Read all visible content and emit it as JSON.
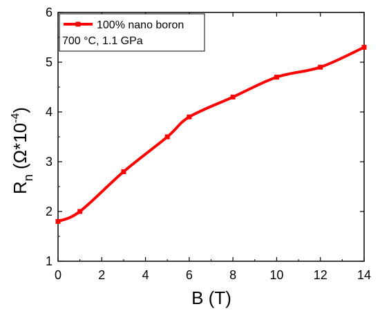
{
  "chart_data": {
    "type": "line",
    "title": "",
    "xlabel": "B (T)",
    "ylabel": {
      "base": "R",
      "subscript": "n",
      "units_prefix": " (Ω*10",
      "units_exponent": "-4",
      "units_suffix": ")"
    },
    "xlim": [
      0,
      14
    ],
    "ylim": [
      1,
      6
    ],
    "xticks": [
      0,
      2,
      4,
      6,
      8,
      10,
      12,
      14
    ],
    "yticks": [
      1,
      2,
      3,
      4,
      5,
      6
    ],
    "grid": false,
    "legend_position": "top-left",
    "annotation": "700 °C, 1.1 GPa",
    "series": [
      {
        "name": "100% nano boron",
        "color": "#ff0000",
        "marker": "square",
        "x": [
          0,
          1,
          3,
          5,
          6,
          8,
          10,
          12,
          14
        ],
        "y": [
          1.8,
          2.0,
          2.8,
          3.5,
          3.9,
          4.3,
          4.7,
          4.9,
          5.3
        ]
      }
    ]
  }
}
